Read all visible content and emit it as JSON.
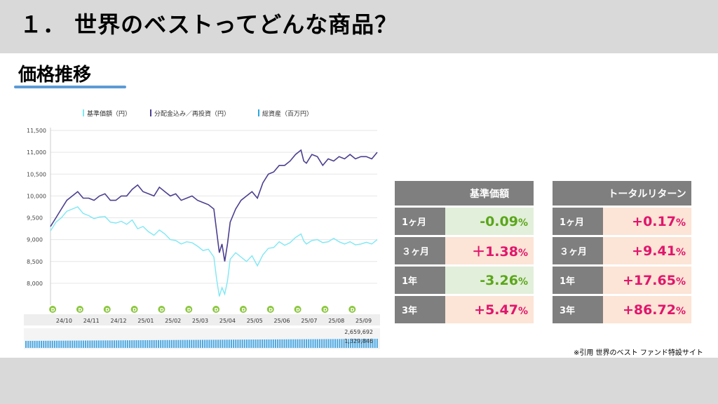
{
  "header": {
    "title": "１． 世界のベストってどんな商品？"
  },
  "section": {
    "title": "価格推移"
  },
  "chart_data": {
    "type": "line",
    "legend": [
      "基準価額（円）",
      "分配金込み／再投資（円）",
      "総資産（百万円）"
    ],
    "series_colors": [
      "#7ee8f5",
      "#4b3f8f",
      "#29a9e0"
    ],
    "y_ticks": [
      "11,500",
      "11,000",
      "10,500",
      "10,000",
      "9,500",
      "9,000",
      "8,500",
      "8,000"
    ],
    "ylim": [
      7500,
      11500
    ],
    "x_ticks": [
      "24/10",
      "24/11",
      "24/12",
      "25/01",
      "25/02",
      "25/03",
      "25/04",
      "25/05",
      "25/06",
      "25/07",
      "25/08",
      "25/09"
    ],
    "x_count": 12,
    "series": [
      {
        "name": "基準価額（円）",
        "x": [
          0,
          0.2,
          0.4,
          0.6,
          0.8,
          1,
          1.2,
          1.4,
          1.6,
          1.8,
          2,
          2.2,
          2.4,
          2.6,
          2.8,
          3,
          3.2,
          3.4,
          3.6,
          3.8,
          4,
          4.2,
          4.4,
          4.6,
          4.8,
          5,
          5.2,
          5.4,
          5.6,
          5.8,
          6,
          6.1,
          6.2,
          6.3,
          6.4,
          6.5,
          6.6,
          6.8,
          7,
          7.2,
          7.4,
          7.6,
          7.8,
          8,
          8.2,
          8.4,
          8.6,
          8.8,
          9,
          9.2,
          9.3,
          9.4,
          9.6,
          9.8,
          10,
          10.2,
          10.4,
          10.6,
          10.8,
          11,
          11.2,
          11.4,
          11.6,
          11.8,
          12
        ],
        "values": [
          9200,
          9400,
          9500,
          9650,
          9700,
          9750,
          9600,
          9550,
          9480,
          9520,
          9530,
          9400,
          9380,
          9420,
          9350,
          9450,
          9250,
          9300,
          9180,
          9100,
          9220,
          9130,
          9000,
          8980,
          8900,
          8950,
          8930,
          8850,
          8750,
          8780,
          8600,
          8100,
          7700,
          7900,
          7750,
          8050,
          8550,
          8700,
          8600,
          8500,
          8630,
          8400,
          8650,
          8800,
          8820,
          8950,
          8870,
          8930,
          9050,
          9130,
          8970,
          8900,
          8980,
          9000,
          8930,
          8950,
          9030,
          8950,
          8900,
          8950,
          8880,
          8900,
          8940,
          8900,
          9000
        ]
      },
      {
        "name": "分配金込み／再投資（円）",
        "x": [
          0,
          0.2,
          0.4,
          0.6,
          0.8,
          1,
          1.2,
          1.4,
          1.6,
          1.8,
          2,
          2.2,
          2.4,
          2.6,
          2.8,
          3,
          3.2,
          3.4,
          3.6,
          3.8,
          4,
          4.2,
          4.4,
          4.6,
          4.8,
          5,
          5.2,
          5.4,
          5.6,
          5.8,
          6,
          6.1,
          6.2,
          6.3,
          6.4,
          6.5,
          6.6,
          6.8,
          7,
          7.2,
          7.4,
          7.6,
          7.8,
          8,
          8.2,
          8.4,
          8.6,
          8.8,
          9,
          9.2,
          9.3,
          9.4,
          9.6,
          9.8,
          10,
          10.2,
          10.4,
          10.6,
          10.8,
          11,
          11.2,
          11.4,
          11.6,
          11.8,
          12
        ],
        "values": [
          9300,
          9500,
          9700,
          9900,
          10000,
          10100,
          9950,
          9950,
          9900,
          10000,
          10050,
          9900,
          9900,
          10000,
          10000,
          10150,
          10250,
          10100,
          10050,
          10000,
          10200,
          10100,
          10000,
          10050,
          9900,
          9950,
          10000,
          9900,
          9850,
          9800,
          9700,
          9200,
          8700,
          8900,
          8500,
          8900,
          9400,
          9700,
          9900,
          10000,
          10100,
          9950,
          10300,
          10500,
          10550,
          10700,
          10700,
          10800,
          10950,
          11050,
          10800,
          10750,
          10950,
          10900,
          10700,
          10850,
          10800,
          10900,
          10850,
          10950,
          10850,
          10900,
          10900,
          10850,
          11000
        ]
      },
      {
        "name": "総資産（百万円）",
        "values_label_top": "2,659,692",
        "values_label_bottom": "1,329,846"
      }
    ],
    "distribution_marker": "D",
    "distribution_count": 12
  },
  "tables": [
    {
      "header": "基準価額",
      "rows": [
        {
          "period": "1ヶ月",
          "value": "-0.09",
          "unit": "%",
          "tone": "green"
        },
        {
          "period": "３ヶ月",
          "value": "＋1.38",
          "unit": "%",
          "tone": "pink"
        },
        {
          "period": "1年",
          "value": "-3.26",
          "unit": "%",
          "tone": "green"
        },
        {
          "period": "3年",
          "value": "+5.47",
          "unit": "%",
          "tone": "pink"
        }
      ]
    },
    {
      "header": "トータルリターン",
      "rows": [
        {
          "period": "1ヶ月",
          "value": "+0.17",
          "unit": "%",
          "tone": "pink"
        },
        {
          "period": "３ヶ月",
          "value": "+9.41",
          "unit": "%",
          "tone": "pink"
        },
        {
          "period": "1年",
          "value": "+17.65",
          "unit": "%",
          "tone": "pink"
        },
        {
          "period": "3年",
          "value": "+86.72",
          "unit": "%",
          "tone": "pink"
        }
      ]
    }
  ],
  "footer": {
    "source": "※引用 世界のベスト ファンド特設サイト"
  }
}
